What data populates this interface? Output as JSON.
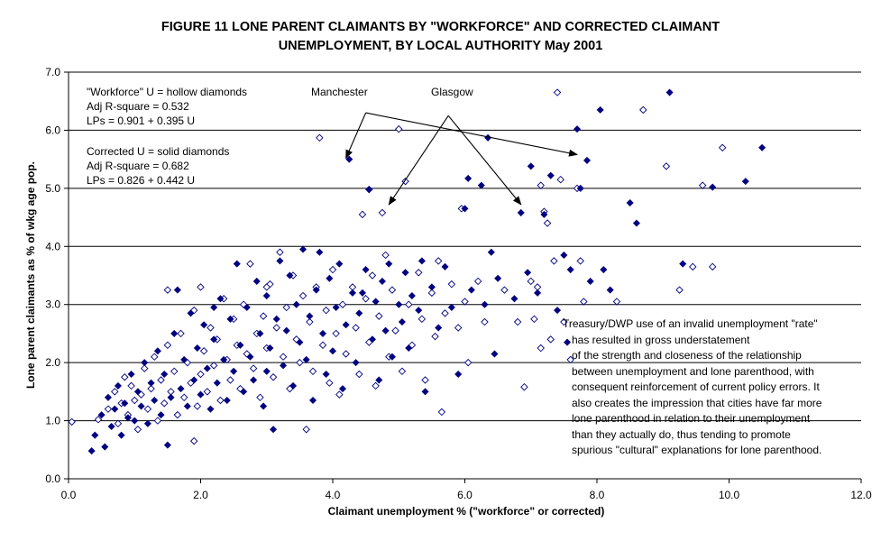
{
  "chart_data": {
    "type": "scatter",
    "title": "FIGURE 11  LONE PARENT CLAIMANTS BY \"WORKFORCE\" AND CORRECTED CLAIMANT\nUNEMPLOYMENT, BY LOCAL AUTHORITY May 2001",
    "xlabel": "Claimant unemployment % (\"workforce\" or corrected)",
    "ylabel": "Lone parent claimants as % of wkg age pop.",
    "xlim": [
      0,
      12
    ],
    "ylim": [
      0,
      7
    ],
    "x_ticks": [
      "0.0",
      "2.0",
      "4.0",
      "6.0",
      "8.0",
      "10.0",
      "12.0"
    ],
    "y_ticks": [
      "0.0",
      "1.0",
      "2.0",
      "3.0",
      "4.0",
      "5.0",
      "6.0",
      "7.0"
    ],
    "grid": "horizontal",
    "series": [
      {
        "name": "\"Workforce\" U = hollow diamonds",
        "marker": "hollow-diamond",
        "color": "#000080",
        "points": [
          [
            0.05,
            0.98
          ],
          [
            0.45,
            1.02
          ],
          [
            0.6,
            1.2
          ],
          [
            0.7,
            1.5
          ],
          [
            0.75,
            0.95
          ],
          [
            0.8,
            1.3
          ],
          [
            0.85,
            1.75
          ],
          [
            0.9,
            1.1
          ],
          [
            0.95,
            1.6
          ],
          [
            1.0,
            1.35
          ],
          [
            1.05,
            0.85
          ],
          [
            1.1,
            1.45
          ],
          [
            1.15,
            1.9
          ],
          [
            1.2,
            1.2
          ],
          [
            1.25,
            1.55
          ],
          [
            1.3,
            2.1
          ],
          [
            1.35,
            1.0
          ],
          [
            1.4,
            1.7
          ],
          [
            1.45,
            1.3
          ],
          [
            1.5,
            2.3
          ],
          [
            1.5,
            3.25
          ],
          [
            1.55,
            1.5
          ],
          [
            1.6,
            1.85
          ],
          [
            1.65,
            1.1
          ],
          [
            1.7,
            2.5
          ],
          [
            1.75,
            1.4
          ],
          [
            1.8,
            2.0
          ],
          [
            1.85,
            1.65
          ],
          [
            1.9,
            0.65
          ],
          [
            1.9,
            2.9
          ],
          [
            1.95,
            1.25
          ],
          [
            2.0,
            3.3
          ],
          [
            2.0,
            1.8
          ],
          [
            2.05,
            2.2
          ],
          [
            2.1,
            1.5
          ],
          [
            2.15,
            2.6
          ],
          [
            2.2,
            1.95
          ],
          [
            2.25,
            2.4
          ],
          [
            2.3,
            1.35
          ],
          [
            2.35,
            3.1
          ],
          [
            2.4,
            2.05
          ],
          [
            2.45,
            1.7
          ],
          [
            2.5,
            2.75
          ],
          [
            2.55,
            2.3
          ],
          [
            2.6,
            1.55
          ],
          [
            2.65,
            3.0
          ],
          [
            2.7,
            2.15
          ],
          [
            2.75,
            3.7
          ],
          [
            2.8,
            1.9
          ],
          [
            2.85,
            2.5
          ],
          [
            2.9,
            1.4
          ],
          [
            2.95,
            2.8
          ],
          [
            3.0,
            2.25
          ],
          [
            3.05,
            3.35
          ],
          [
            3.1,
            1.75
          ],
          [
            3.15,
            2.6
          ],
          [
            3.2,
            3.9
          ],
          [
            3.25,
            2.1
          ],
          [
            3.3,
            2.95
          ],
          [
            3.35,
            1.55
          ],
          [
            3.4,
            3.5
          ],
          [
            3.45,
            2.4
          ],
          [
            3.5,
            2.0
          ],
          [
            3.55,
            3.15
          ],
          [
            3.6,
            0.85
          ],
          [
            3.65,
            2.7
          ],
          [
            3.7,
            1.85
          ],
          [
            3.75,
            3.3
          ],
          [
            3.8,
            5.87
          ],
          [
            3.85,
            2.3
          ],
          [
            3.9,
            2.9
          ],
          [
            3.95,
            1.65
          ],
          [
            4.0,
            3.6
          ],
          [
            4.05,
            2.5
          ],
          [
            4.1,
            1.45
          ],
          [
            4.15,
            3.0
          ],
          [
            4.2,
            2.15
          ],
          [
            4.3,
            3.3
          ],
          [
            4.35,
            2.6
          ],
          [
            4.4,
            1.8
          ],
          [
            4.45,
            4.55
          ],
          [
            4.5,
            3.1
          ],
          [
            4.55,
            2.35
          ],
          [
            4.6,
            3.5
          ],
          [
            4.65,
            1.6
          ],
          [
            4.7,
            2.8
          ],
          [
            4.75,
            4.58
          ],
          [
            4.8,
            3.85
          ],
          [
            4.85,
            2.1
          ],
          [
            4.9,
            3.25
          ],
          [
            4.95,
            2.55
          ],
          [
            5.0,
            6.02
          ],
          [
            5.05,
            1.85
          ],
          [
            5.1,
            5.12
          ],
          [
            5.15,
            3.0
          ],
          [
            5.2,
            2.3
          ],
          [
            5.3,
            3.55
          ],
          [
            5.35,
            2.75
          ],
          [
            5.4,
            1.7
          ],
          [
            5.5,
            3.2
          ],
          [
            5.55,
            2.45
          ],
          [
            5.6,
            3.75
          ],
          [
            5.65,
            1.15
          ],
          [
            5.7,
            2.85
          ],
          [
            5.8,
            3.35
          ],
          [
            5.9,
            2.6
          ],
          [
            5.95,
            4.65
          ],
          [
            6.0,
            3.05
          ],
          [
            6.05,
            2.0
          ],
          [
            6.2,
            3.4
          ],
          [
            6.3,
            2.7
          ],
          [
            6.6,
            3.25
          ],
          [
            6.8,
            2.7
          ],
          [
            6.9,
            1.58
          ],
          [
            7.0,
            3.4
          ],
          [
            7.05,
            2.75
          ],
          [
            7.1,
            3.3
          ],
          [
            7.15,
            2.25
          ],
          [
            7.2,
            4.6
          ],
          [
            7.3,
            2.4
          ],
          [
            7.35,
            3.75
          ],
          [
            7.4,
            6.65
          ],
          [
            7.45,
            5.15
          ],
          [
            7.5,
            2.7
          ],
          [
            7.6,
            2.05
          ],
          [
            7.7,
            5.0
          ],
          [
            7.75,
            3.75
          ],
          [
            7.8,
            3.05
          ],
          [
            8.3,
            3.05
          ],
          [
            8.7,
            6.35
          ],
          [
            9.05,
            5.38
          ],
          [
            9.25,
            3.25
          ],
          [
            9.45,
            3.65
          ],
          [
            9.75,
            3.65
          ],
          [
            9.9,
            5.7
          ],
          [
            9.6,
            5.05
          ],
          [
            4.55,
            4.98
          ],
          [
            7.25,
            4.4
          ],
          [
            7.15,
            5.05
          ],
          [
            3.0,
            3.3
          ]
        ]
      },
      {
        "name": "Corrected U = solid diamonds",
        "marker": "solid-diamond",
        "color": "#000080",
        "points": [
          [
            0.35,
            0.48
          ],
          [
            0.4,
            0.75
          ],
          [
            0.5,
            1.1
          ],
          [
            0.55,
            0.55
          ],
          [
            0.6,
            1.4
          ],
          [
            0.65,
            0.9
          ],
          [
            0.7,
            1.2
          ],
          [
            0.75,
            1.6
          ],
          [
            0.8,
            0.75
          ],
          [
            0.85,
            1.3
          ],
          [
            0.9,
            1.05
          ],
          [
            0.95,
            1.8
          ],
          [
            1.0,
            1.0
          ],
          [
            1.05,
            1.5
          ],
          [
            1.1,
            1.25
          ],
          [
            1.15,
            2.0
          ],
          [
            1.2,
            0.95
          ],
          [
            1.25,
            1.65
          ],
          [
            1.3,
            1.35
          ],
          [
            1.35,
            2.2
          ],
          [
            1.4,
            1.1
          ],
          [
            1.45,
            1.8
          ],
          [
            1.5,
            0.58
          ],
          [
            1.55,
            1.4
          ],
          [
            1.6,
            2.5
          ],
          [
            1.65,
            3.25
          ],
          [
            1.7,
            1.55
          ],
          [
            1.75,
            2.05
          ],
          [
            1.8,
            1.25
          ],
          [
            1.85,
            2.85
          ],
          [
            1.9,
            1.7
          ],
          [
            1.95,
            2.25
          ],
          [
            2.0,
            1.45
          ],
          [
            2.05,
            2.65
          ],
          [
            2.1,
            1.9
          ],
          [
            2.15,
            1.2
          ],
          [
            2.2,
            2.4
          ],
          [
            2.25,
            1.65
          ],
          [
            2.3,
            3.1
          ],
          [
            2.35,
            2.05
          ],
          [
            2.4,
            1.35
          ],
          [
            2.45,
            2.75
          ],
          [
            2.5,
            1.85
          ],
          [
            2.55,
            3.7
          ],
          [
            2.6,
            2.3
          ],
          [
            2.65,
            1.5
          ],
          [
            2.7,
            2.95
          ],
          [
            2.75,
            2.1
          ],
          [
            2.8,
            1.7
          ],
          [
            2.85,
            3.4
          ],
          [
            2.9,
            2.5
          ],
          [
            2.95,
            1.25
          ],
          [
            3.0,
            3.15
          ],
          [
            3.05,
            2.25
          ],
          [
            3.1,
            0.85
          ],
          [
            3.15,
            2.75
          ],
          [
            3.2,
            3.75
          ],
          [
            3.25,
            1.95
          ],
          [
            3.3,
            2.55
          ],
          [
            3.35,
            3.5
          ],
          [
            3.4,
            1.6
          ],
          [
            3.45,
            3.0
          ],
          [
            3.5,
            2.35
          ],
          [
            3.55,
            3.95
          ],
          [
            3.6,
            2.05
          ],
          [
            3.65,
            2.8
          ],
          [
            3.7,
            1.35
          ],
          [
            3.75,
            3.25
          ],
          [
            3.8,
            3.9
          ],
          [
            3.85,
            2.5
          ],
          [
            3.9,
            1.8
          ],
          [
            3.95,
            3.45
          ],
          [
            4.0,
            2.2
          ],
          [
            4.05,
            2.95
          ],
          [
            4.1,
            3.7
          ],
          [
            4.15,
            1.55
          ],
          [
            4.2,
            2.65
          ],
          [
            4.25,
            5.5
          ],
          [
            4.3,
            3.2
          ],
          [
            4.35,
            2.0
          ],
          [
            4.4,
            2.85
          ],
          [
            4.5,
            3.6
          ],
          [
            4.55,
            4.98
          ],
          [
            4.6,
            2.4
          ],
          [
            4.65,
            3.05
          ],
          [
            4.7,
            1.7
          ],
          [
            4.75,
            3.4
          ],
          [
            4.8,
            2.55
          ],
          [
            4.85,
            3.7
          ],
          [
            4.9,
            2.1
          ],
          [
            5.0,
            3.0
          ],
          [
            5.05,
            2.7
          ],
          [
            5.1,
            3.55
          ],
          [
            5.15,
            2.25
          ],
          [
            5.2,
            3.15
          ],
          [
            5.3,
            2.9
          ],
          [
            5.35,
            3.75
          ],
          [
            5.4,
            1.5
          ],
          [
            5.5,
            3.3
          ],
          [
            5.6,
            2.6
          ],
          [
            5.7,
            3.65
          ],
          [
            5.8,
            2.95
          ],
          [
            5.9,
            1.8
          ],
          [
            6.0,
            4.65
          ],
          [
            6.05,
            5.17
          ],
          [
            6.1,
            3.25
          ],
          [
            6.25,
            5.05
          ],
          [
            6.3,
            3.0
          ],
          [
            6.35,
            5.87
          ],
          [
            6.4,
            3.9
          ],
          [
            6.5,
            3.45
          ],
          [
            6.45,
            2.15
          ],
          [
            6.85,
            4.58
          ],
          [
            6.95,
            3.55
          ],
          [
            7.0,
            5.38
          ],
          [
            7.1,
            3.2
          ],
          [
            7.2,
            4.55
          ],
          [
            7.3,
            5.22
          ],
          [
            7.4,
            2.9
          ],
          [
            7.5,
            3.85
          ],
          [
            7.55,
            2.35
          ],
          [
            7.6,
            3.6
          ],
          [
            7.7,
            6.02
          ],
          [
            7.75,
            5.0
          ],
          [
            7.85,
            5.48
          ],
          [
            7.9,
            3.4
          ],
          [
            8.05,
            6.35
          ],
          [
            8.1,
            3.6
          ],
          [
            8.2,
            3.25
          ],
          [
            8.5,
            4.75
          ],
          [
            8.6,
            4.4
          ],
          [
            9.1,
            6.65
          ],
          [
            9.3,
            3.7
          ],
          [
            9.75,
            5.02
          ],
          [
            10.25,
            5.12
          ],
          [
            10.5,
            5.7
          ],
          [
            6.75,
            3.1
          ],
          [
            4.45,
            3.2
          ],
          [
            3.0,
            1.85
          ],
          [
            2.2,
            2.95
          ]
        ]
      }
    ],
    "annotations": {
      "left_block_1": [
        "\"Workforce\" U = hollow diamonds",
        "Adj R-square = 0.532",
        "LPs = 0.901 + 0.395 U"
      ],
      "left_block_2": [
        "Corrected U = solid diamonds",
        "Adj R-square = 0.682",
        "LPs = 0.826 + 0.442 U"
      ],
      "city_labels": [
        "Manchester",
        "Glasgow"
      ],
      "note_lines": [
        "Treasury/DWP use of an invalid unemployment \"rate\"",
        "has resulted in gross understatement",
        "of the strength and closeness of the relationship",
        "between unemployment and lone parenthood, with",
        "consequent reinforcement of current policy errors.  It",
        "also creates the impression that cities have far more",
        "lone parenthood in relation to their unemployment",
        "than they actually do, thus tending to promote",
        "spurious \"cultural\" explanations for lone parenthood."
      ]
    }
  }
}
